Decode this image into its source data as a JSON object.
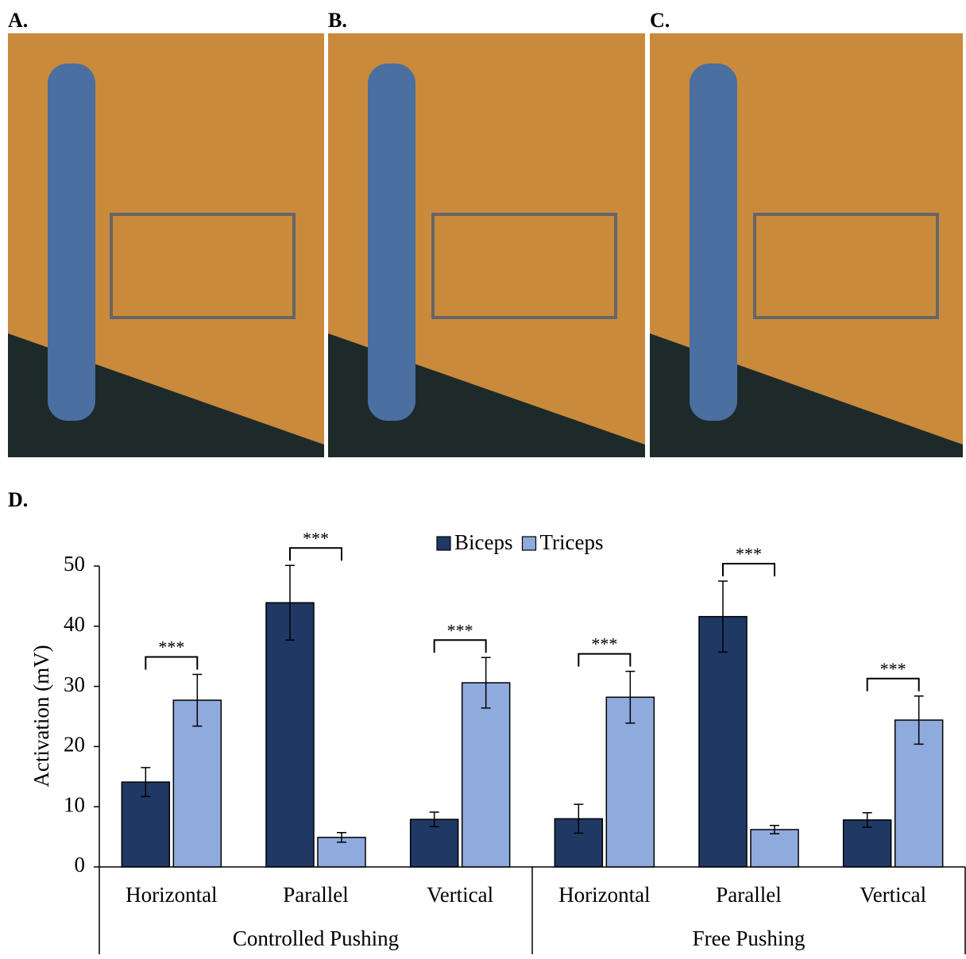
{
  "panels": {
    "a": "A.",
    "b": "B.",
    "c": "C.",
    "d": "D."
  },
  "chart_data": {
    "type": "bar",
    "ylabel": "Activation (mV)",
    "categories": [
      "Horizontal",
      "Parallel",
      "Vertical",
      "Horizontal",
      "Parallel",
      "Vertical"
    ],
    "groups": [
      "Controlled Pushing",
      "Free Pushing"
    ],
    "series": [
      {
        "name": "Biceps",
        "color": "#203864",
        "values": [
          14.1,
          43.9,
          7.9,
          8.0,
          41.6,
          7.8
        ],
        "errors": [
          2.4,
          6.2,
          1.2,
          2.4,
          5.9,
          1.2
        ]
      },
      {
        "name": "Triceps",
        "color": "#8faadc",
        "values": [
          27.7,
          4.9,
          30.6,
          28.2,
          6.2,
          24.4
        ],
        "errors": [
          4.3,
          0.8,
          4.2,
          4.3,
          0.7,
          4.0
        ]
      }
    ],
    "significance": [
      "***",
      "***",
      "***",
      "***",
      "***",
      "***"
    ],
    "ylim": [
      0,
      50
    ],
    "yticks": [
      0,
      10,
      20,
      30,
      40,
      50
    ],
    "legend": "top"
  }
}
